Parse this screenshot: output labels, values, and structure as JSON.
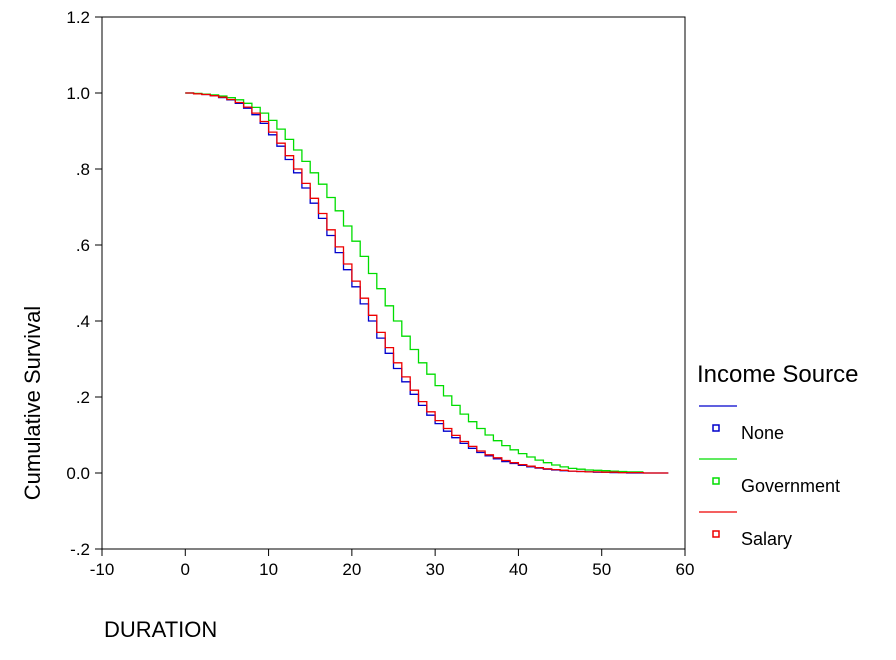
{
  "chart_data": {
    "type": "line",
    "step": true,
    "xlabel": "DURATION",
    "ylabel": "Cumulative Survival",
    "xlim": [
      -10,
      60
    ],
    "ylim": [
      -0.2,
      1.2
    ],
    "x_ticks": [
      -10,
      0,
      10,
      20,
      30,
      40,
      50,
      60
    ],
    "x_tick_labels": [
      "-10",
      "0",
      "10",
      "20",
      "30",
      "40",
      "50",
      "60"
    ],
    "y_ticks": [
      -0.2,
      0.0,
      0.2,
      0.4,
      0.6,
      0.8,
      1.0,
      1.2
    ],
    "y_tick_labels": [
      "-.2",
      "0.0",
      ".2",
      ".4",
      ".6",
      ".8",
      "1.0",
      "1.2"
    ],
    "grid": false,
    "legend": {
      "title": "Income Source",
      "position": "right"
    },
    "series": [
      {
        "name": "None",
        "color": "#0000cc",
        "x": [
          0,
          1,
          2,
          3,
          4,
          5,
          6,
          7,
          8,
          9,
          10,
          11,
          12,
          13,
          14,
          15,
          16,
          17,
          18,
          19,
          20,
          21,
          22,
          23,
          24,
          25,
          26,
          27,
          28,
          29,
          30,
          31,
          32,
          33,
          34,
          35,
          36,
          37,
          38,
          39,
          40,
          41,
          42,
          43,
          44,
          45,
          46,
          47,
          48,
          49,
          50,
          51,
          52,
          53,
          54,
          55,
          56,
          57,
          58
        ],
        "y": [
          1.0,
          0.998,
          0.996,
          0.993,
          0.988,
          0.982,
          0.973,
          0.96,
          0.943,
          0.92,
          0.89,
          0.86,
          0.825,
          0.79,
          0.75,
          0.71,
          0.67,
          0.625,
          0.58,
          0.535,
          0.49,
          0.445,
          0.4,
          0.355,
          0.315,
          0.275,
          0.24,
          0.207,
          0.178,
          0.152,
          0.13,
          0.11,
          0.093,
          0.078,
          0.065,
          0.054,
          0.045,
          0.037,
          0.03,
          0.025,
          0.02,
          0.016,
          0.013,
          0.01,
          0.008,
          0.006,
          0.005,
          0.004,
          0.003,
          0.002,
          0.002,
          0.001,
          0.001,
          0.0,
          0.0,
          0.0,
          0.0,
          0.0,
          0.0
        ]
      },
      {
        "name": "Government",
        "color": "#00dd00",
        "x": [
          0,
          1,
          2,
          3,
          4,
          5,
          6,
          7,
          8,
          9,
          10,
          11,
          12,
          13,
          14,
          15,
          16,
          17,
          18,
          19,
          20,
          21,
          22,
          23,
          24,
          25,
          26,
          27,
          28,
          29,
          30,
          31,
          32,
          33,
          34,
          35,
          36,
          37,
          38,
          39,
          40,
          41,
          42,
          43,
          44,
          45,
          46,
          47,
          48,
          49,
          50,
          51,
          52,
          53,
          54,
          55
        ],
        "y": [
          1.0,
          0.999,
          0.997,
          0.995,
          0.992,
          0.988,
          0.982,
          0.973,
          0.962,
          0.947,
          0.928,
          0.905,
          0.878,
          0.85,
          0.82,
          0.79,
          0.76,
          0.725,
          0.69,
          0.65,
          0.61,
          0.57,
          0.525,
          0.485,
          0.44,
          0.4,
          0.36,
          0.325,
          0.29,
          0.26,
          0.23,
          0.203,
          0.178,
          0.155,
          0.135,
          0.117,
          0.1,
          0.085,
          0.072,
          0.061,
          0.051,
          0.042,
          0.034,
          0.027,
          0.021,
          0.016,
          0.012,
          0.01,
          0.008,
          0.007,
          0.006,
          0.005,
          0.004,
          0.003,
          0.003,
          0.003
        ]
      },
      {
        "name": "Salary",
        "color": "#ee0000",
        "x": [
          0,
          1,
          2,
          3,
          4,
          5,
          6,
          7,
          8,
          9,
          10,
          11,
          12,
          13,
          14,
          15,
          16,
          17,
          18,
          19,
          20,
          21,
          22,
          23,
          24,
          25,
          26,
          27,
          28,
          29,
          30,
          31,
          32,
          33,
          34,
          35,
          36,
          37,
          38,
          39,
          40,
          41,
          42,
          43,
          44,
          45,
          46,
          47,
          48,
          49,
          50,
          51,
          52,
          53,
          54,
          55,
          56,
          57,
          58
        ],
        "y": [
          1.0,
          0.998,
          0.996,
          0.993,
          0.989,
          0.983,
          0.975,
          0.963,
          0.947,
          0.925,
          0.897,
          0.868,
          0.835,
          0.8,
          0.762,
          0.723,
          0.683,
          0.64,
          0.595,
          0.55,
          0.505,
          0.46,
          0.415,
          0.37,
          0.33,
          0.29,
          0.253,
          0.218,
          0.188,
          0.161,
          0.138,
          0.117,
          0.099,
          0.083,
          0.07,
          0.058,
          0.048,
          0.04,
          0.033,
          0.027,
          0.022,
          0.018,
          0.014,
          0.011,
          0.009,
          0.007,
          0.005,
          0.004,
          0.003,
          0.003,
          0.002,
          0.002,
          0.001,
          0.001,
          0.001,
          0.0,
          0.0,
          0.0,
          0.0
        ]
      }
    ]
  }
}
